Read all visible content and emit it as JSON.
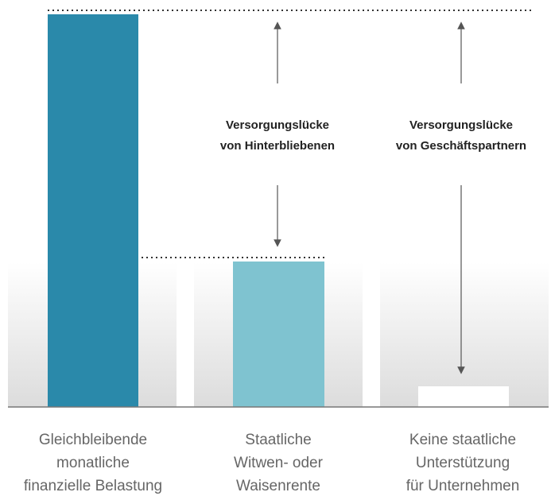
{
  "gap_labels": [
    [
      "Versorgungslücke",
      "von Hinterbliebenen"
    ],
    [
      "Versorgungslücke",
      "von Geschäftspartnern"
    ]
  ],
  "columns": [
    [
      "Gleichbleibende",
      "monatliche",
      "finanzielle Belastung"
    ],
    [
      "Staatliche",
      "Witwen- oder",
      "Waisenrente"
    ],
    [
      "Keine staatliche",
      "Unterstützung",
      "für Unternehmen"
    ]
  ]
}
